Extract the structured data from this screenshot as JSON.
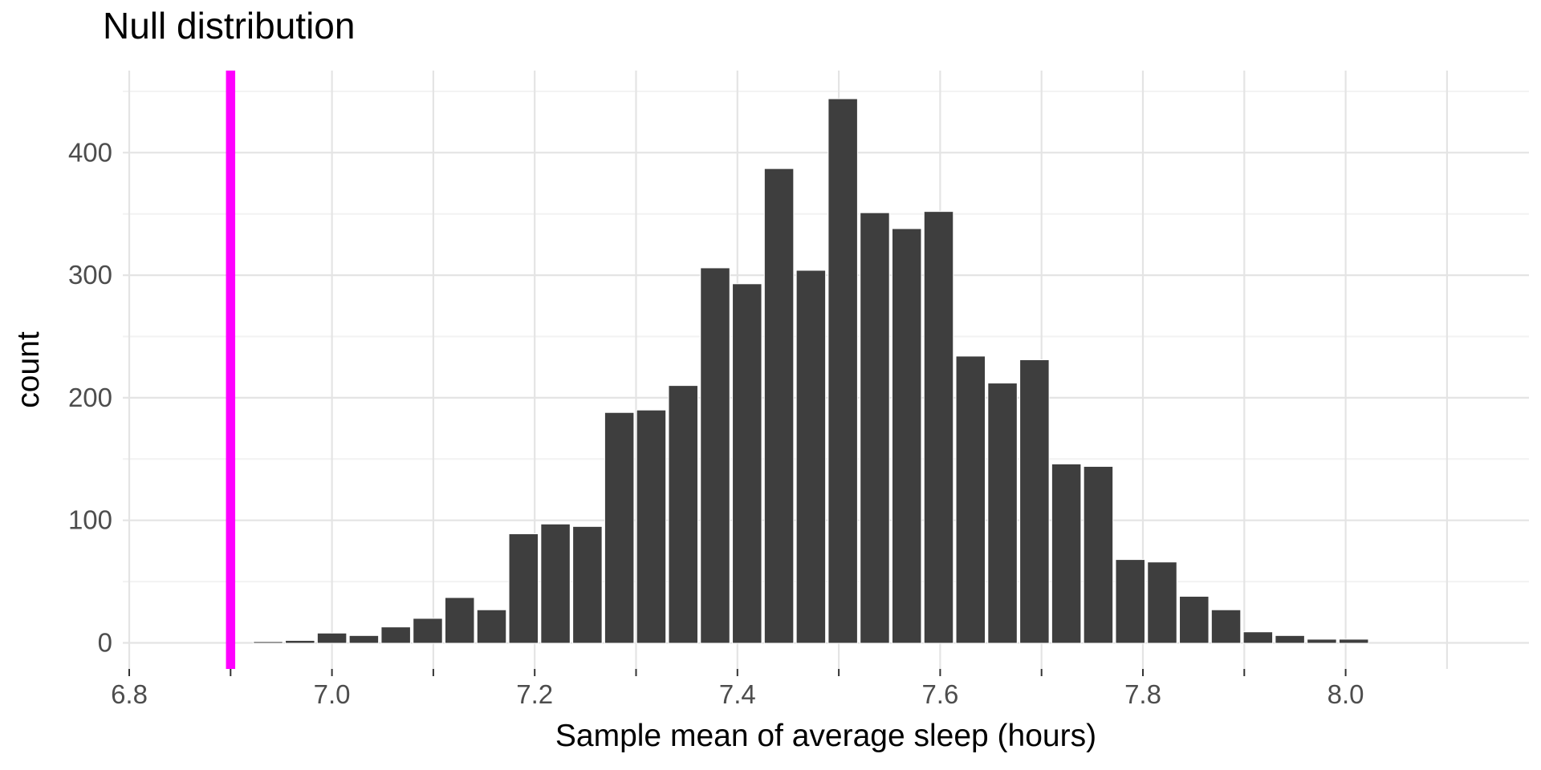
{
  "chart": {
    "title": "Null distribution",
    "xlabel": "Sample mean of average sleep (hours)",
    "ylabel": "count"
  },
  "chart_data": {
    "type": "bar",
    "subtype": "histogram",
    "title": "Null distribution",
    "xlabel": "Sample mean of average sleep (hours)",
    "ylabel": "count",
    "bin_width": 0.0315,
    "bin_centers": [
      6.937,
      6.9685,
      7.0,
      7.0315,
      7.063,
      7.0945,
      7.126,
      7.1575,
      7.189,
      7.2205,
      7.252,
      7.2835,
      7.315,
      7.3465,
      7.378,
      7.4095,
      7.441,
      7.4725,
      7.504,
      7.5355,
      7.567,
      7.5985,
      7.63,
      7.6615,
      7.693,
      7.7245,
      7.756,
      7.7875,
      7.819,
      7.8505,
      7.882,
      7.9135,
      7.945,
      7.9765,
      8.008
    ],
    "counts": [
      1,
      2,
      8,
      6,
      13,
      20,
      37,
      27,
      89,
      97,
      95,
      188,
      190,
      210,
      306,
      293,
      387,
      304,
      444,
      351,
      338,
      352,
      234,
      212,
      231,
      146,
      144,
      68,
      66,
      38,
      27,
      9,
      6,
      3,
      3
    ],
    "vline": {
      "x": 6.9,
      "color": "#ff00ff"
    },
    "x_axis": {
      "tick_values": [
        6.8,
        6.9,
        7.0,
        7.1,
        7.2,
        7.3,
        7.4,
        7.5,
        7.6,
        7.7,
        7.8,
        7.9,
        8.0
      ],
      "labeled_ticks": [
        6.8,
        7.0,
        7.2,
        7.4,
        7.6,
        7.8,
        8.0
      ],
      "grid_values": [
        6.8,
        6.9,
        7.0,
        7.1,
        7.2,
        7.3,
        7.4,
        7.5,
        7.6,
        7.7,
        7.8,
        7.9,
        8.0,
        8.1
      ],
      "label_decimals": 1
    },
    "y_axis": {
      "major_ticks": [
        0,
        100,
        200,
        300,
        400
      ],
      "minor_gridlines": [
        50,
        150,
        250,
        350,
        450
      ]
    },
    "xlim": [
      6.79,
      8.19
    ],
    "ylim": [
      0,
      467
    ],
    "grid": true,
    "legend": "none",
    "colors": {
      "bar_fill": "#3e3e3e",
      "bar_stroke": "#ffffff",
      "grid_major": "#e4e4e4",
      "grid_minor": "#f2f2f2",
      "axis_text": "#4d4d4d",
      "tick_mark": "#333333",
      "title_text": "#000000",
      "background": "#ffffff",
      "vline": "#ff00ff"
    }
  }
}
